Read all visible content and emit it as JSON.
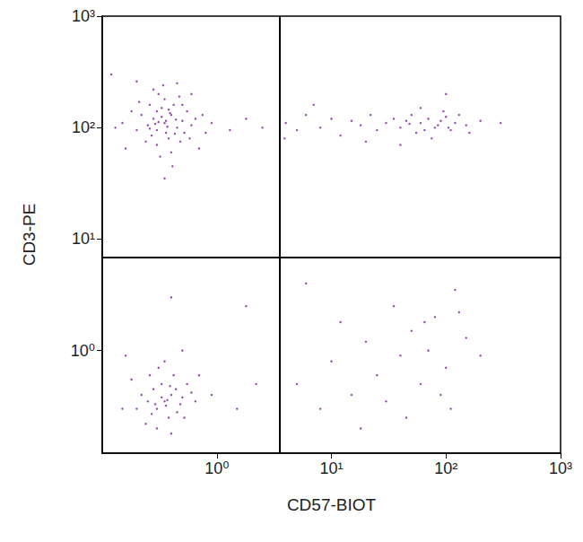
{
  "chart_data": {
    "type": "scatter",
    "x_label": "CD57-BIOT",
    "y_label": "CD3-PE",
    "log": true,
    "grid": false,
    "color": "#7a2a95",
    "marker": "circle",
    "xlim": [
      0.1,
      1000
    ],
    "ylim": [
      0.12,
      1000
    ],
    "xticks": [
      {
        "value": 1,
        "label": "10⁰"
      },
      {
        "value": 10,
        "label": "10¹"
      },
      {
        "value": 100,
        "label": "10²"
      },
      {
        "value": 1000,
        "label": "10³"
      }
    ],
    "yticks": [
      {
        "value": 1,
        "label": "10⁰"
      },
      {
        "value": 10,
        "label": "10¹"
      },
      {
        "value": 100,
        "label": "10²"
      },
      {
        "value": 1000,
        "label": "10³"
      }
    ],
    "quadrant_x": 3.5,
    "quadrant_y": 6.8,
    "points": [
      [
        0.35,
        110
      ],
      [
        0.3,
        95
      ],
      [
        0.4,
        130
      ],
      [
        0.28,
        120
      ],
      [
        0.45,
        100
      ],
      [
        0.33,
        150
      ],
      [
        0.38,
        80
      ],
      [
        0.25,
        105
      ],
      [
        0.5,
        115
      ],
      [
        0.3,
        70
      ],
      [
        0.42,
        160
      ],
      [
        0.36,
        90
      ],
      [
        0.22,
        130
      ],
      [
        0.55,
        140
      ],
      [
        0.31,
        200
      ],
      [
        0.4,
        60
      ],
      [
        0.27,
        85
      ],
      [
        0.48,
        75
      ],
      [
        0.35,
        180
      ],
      [
        0.2,
        95
      ],
      [
        0.6,
        105
      ],
      [
        0.18,
        140
      ],
      [
        0.33,
        125
      ],
      [
        0.44,
        118
      ],
      [
        0.29,
        108
      ],
      [
        0.37,
        102
      ],
      [
        0.26,
        160
      ],
      [
        0.52,
        90
      ],
      [
        0.39,
        135
      ],
      [
        0.24,
        75
      ],
      [
        0.65,
        120
      ],
      [
        0.15,
        110
      ],
      [
        0.32,
        55
      ],
      [
        0.47,
        190
      ],
      [
        0.34,
        240
      ],
      [
        0.41,
        45
      ],
      [
        0.21,
        170
      ],
      [
        0.58,
        80
      ],
      [
        0.3,
        140
      ],
      [
        0.36,
        115
      ],
      [
        0.75,
        130
      ],
      [
        0.13,
        100
      ],
      [
        0.28,
        220
      ],
      [
        0.5,
        160
      ],
      [
        0.43,
        88
      ],
      [
        0.26,
        98
      ],
      [
        0.38,
        145
      ],
      [
        0.31,
        112
      ],
      [
        0.9,
        110
      ],
      [
        1.3,
        95
      ],
      [
        1.8,
        120
      ],
      [
        2.5,
        100
      ],
      [
        0.7,
        65
      ],
      [
        0.2,
        260
      ],
      [
        0.35,
        35
      ],
      [
        0.16,
        65
      ],
      [
        0.12,
        300
      ],
      [
        0.6,
        200
      ],
      [
        0.45,
        250
      ],
      [
        0.8,
        90
      ],
      [
        4,
        110
      ],
      [
        5,
        95
      ],
      [
        6,
        130
      ],
      [
        8,
        100
      ],
      [
        10,
        120
      ],
      [
        12,
        85
      ],
      [
        15,
        115
      ],
      [
        18,
        105
      ],
      [
        22,
        130
      ],
      [
        25,
        95
      ],
      [
        30,
        110
      ],
      [
        35,
        120
      ],
      [
        40,
        100
      ],
      [
        45,
        115
      ],
      [
        50,
        130
      ],
      [
        55,
        90
      ],
      [
        60,
        110
      ],
      [
        70,
        120
      ],
      [
        80,
        100
      ],
      [
        90,
        115
      ],
      [
        100,
        125
      ],
      [
        110,
        95
      ],
      [
        120,
        110
      ],
      [
        150,
        105
      ],
      [
        200,
        115
      ],
      [
        60,
        150
      ],
      [
        75,
        80
      ],
      [
        95,
        140
      ],
      [
        130,
        130
      ],
      [
        40,
        70
      ],
      [
        85,
        105
      ],
      [
        65,
        95
      ],
      [
        105,
        100
      ],
      [
        48,
        108
      ],
      [
        300,
        110
      ],
      [
        7,
        160
      ],
      [
        20,
        75
      ],
      [
        100,
        200
      ],
      [
        3.9,
        80
      ],
      [
        160,
        90
      ],
      [
        0.35,
        0.35
      ],
      [
        0.3,
        0.3
      ],
      [
        0.4,
        0.4
      ],
      [
        0.28,
        0.45
      ],
      [
        0.45,
        0.28
      ],
      [
        0.33,
        0.5
      ],
      [
        0.38,
        0.25
      ],
      [
        0.25,
        0.35
      ],
      [
        0.5,
        0.38
      ],
      [
        0.3,
        0.2
      ],
      [
        0.42,
        0.6
      ],
      [
        0.36,
        0.32
      ],
      [
        0.22,
        0.4
      ],
      [
        0.55,
        0.5
      ],
      [
        0.31,
        0.7
      ],
      [
        0.4,
        0.18
      ],
      [
        0.27,
        0.27
      ],
      [
        0.48,
        0.33
      ],
      [
        0.35,
        0.8
      ],
      [
        0.2,
        0.3
      ],
      [
        0.6,
        0.42
      ],
      [
        0.18,
        0.55
      ],
      [
        0.33,
        0.38
      ],
      [
        0.44,
        0.45
      ],
      [
        0.29,
        0.33
      ],
      [
        0.37,
        0.36
      ],
      [
        0.26,
        0.6
      ],
      [
        0.52,
        0.25
      ],
      [
        0.39,
        0.48
      ],
      [
        0.24,
        0.22
      ],
      [
        0.65,
        0.35
      ],
      [
        0.15,
        0.3
      ],
      [
        0.7,
        0.6
      ],
      [
        0.9,
        0.4
      ],
      [
        1.5,
        0.3
      ],
      [
        2.2,
        0.5
      ],
      [
        0.16,
        0.9
      ],
      [
        0.5,
        1.0
      ],
      [
        0.4,
        3.0
      ],
      [
        1.8,
        2.5
      ],
      [
        5,
        0.5
      ],
      [
        8,
        0.3
      ],
      [
        10,
        0.8
      ],
      [
        15,
        0.4
      ],
      [
        20,
        1.2
      ],
      [
        25,
        0.6
      ],
      [
        30,
        0.35
      ],
      [
        40,
        0.9
      ],
      [
        50,
        1.5
      ],
      [
        60,
        0.5
      ],
      [
        70,
        1.0
      ],
      [
        80,
        2.0
      ],
      [
        100,
        0.7
      ],
      [
        120,
        3.5
      ],
      [
        150,
        1.3
      ],
      [
        90,
        0.4
      ],
      [
        35,
        2.5
      ],
      [
        12,
        1.8
      ],
      [
        6,
        4
      ],
      [
        45,
        0.25
      ],
      [
        200,
        0.9
      ],
      [
        130,
        2.2
      ],
      [
        18,
        0.2
      ],
      [
        65,
        1.8
      ],
      [
        110,
        0.3
      ]
    ]
  }
}
